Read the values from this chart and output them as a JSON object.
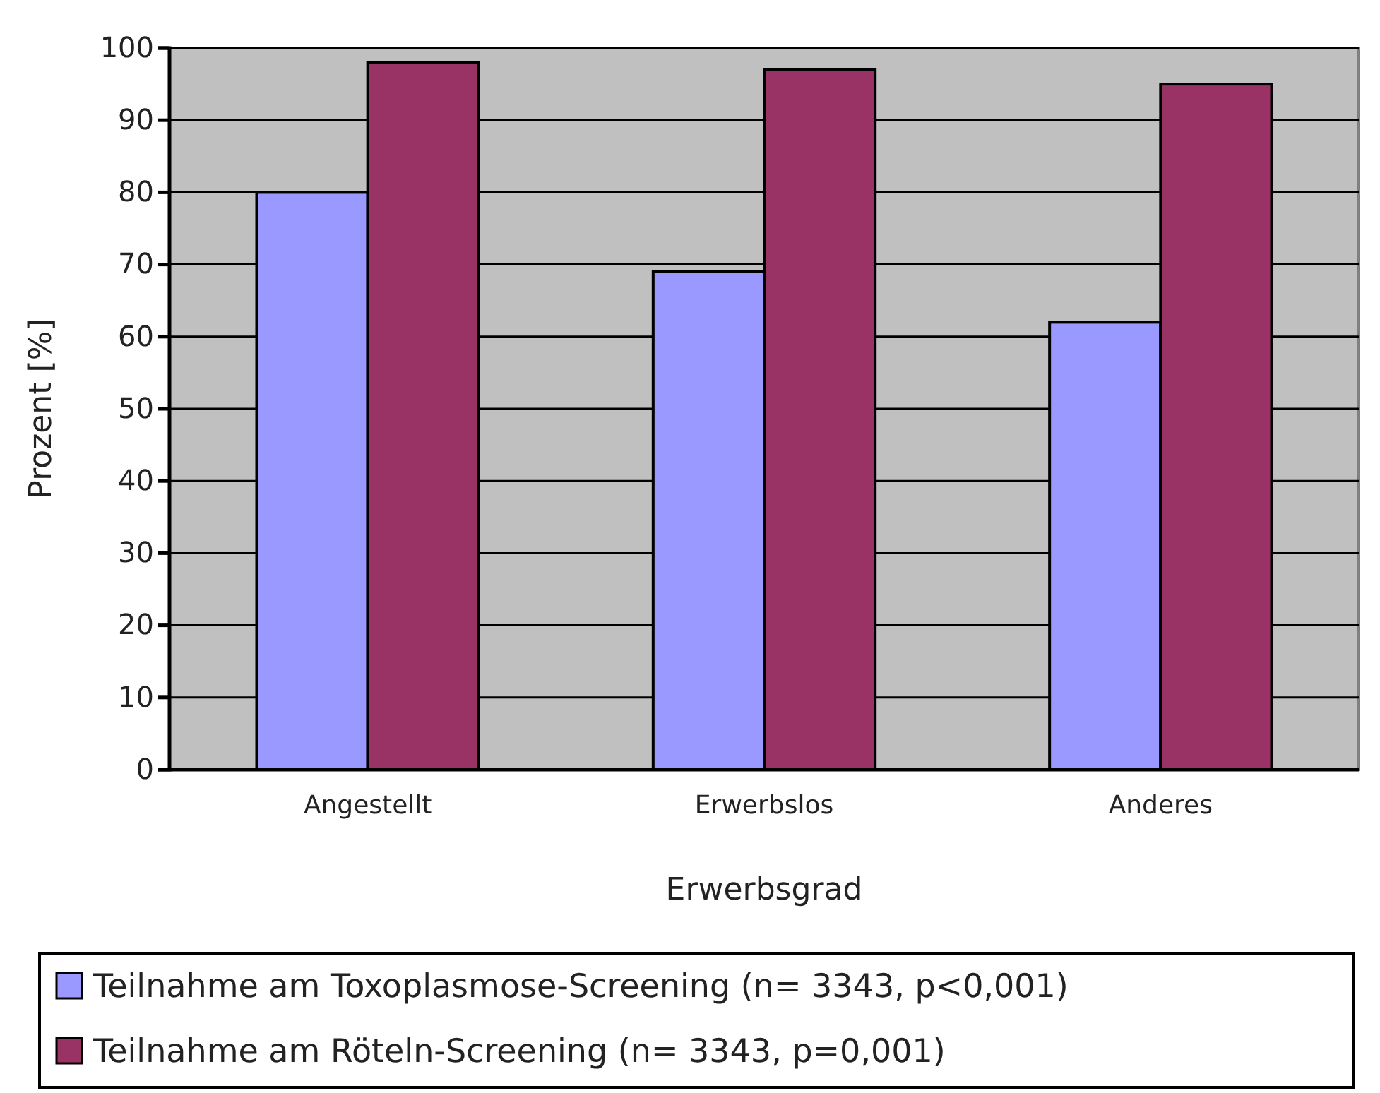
{
  "chart_data": {
    "type": "bar",
    "xlabel": "Erwerbsgrad",
    "ylabel": "Prozent [%]",
    "categories": [
      "Angestellt",
      "Erwerbslos",
      "Anderes"
    ],
    "series": [
      {
        "name": "Teilnahme am Toxoplasmose-Screening (n= 3343, p<0,001)",
        "color": "#9999ff",
        "values": [
          80,
          69,
          62
        ]
      },
      {
        "name": "Teilnahme am Röteln-Screening (n= 3343, p=0,001)",
        "color": "#993366",
        "values": [
          98,
          97,
          95
        ]
      }
    ],
    "ylim": [
      0,
      100
    ],
    "yticks": [
      0,
      10,
      20,
      30,
      40,
      50,
      60,
      70,
      80,
      90,
      100
    ],
    "grid": "y",
    "legend": "bottom"
  }
}
